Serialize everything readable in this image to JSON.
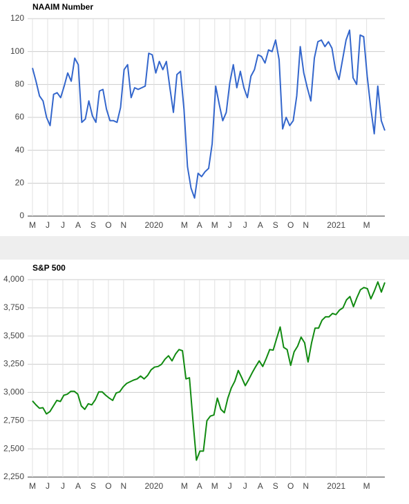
{
  "chart_data": [
    {
      "type": "line",
      "title": "NAAIM Number",
      "grid": true,
      "series": [
        {
          "name": null,
          "color": "#3366cc",
          "values": [
            90,
            82,
            73,
            70,
            60,
            55,
            74,
            75,
            72,
            79,
            87,
            82,
            96,
            92,
            57,
            59,
            70,
            61,
            57,
            76,
            77,
            65,
            58,
            58,
            57,
            66,
            89,
            92,
            72,
            78,
            77,
            78,
            79,
            99,
            98,
            87,
            94,
            89,
            94,
            78,
            63,
            86,
            88,
            65,
            30,
            17,
            11,
            26,
            24,
            27,
            29,
            44,
            79,
            68,
            58,
            63,
            81,
            92,
            78,
            88,
            78,
            72,
            85,
            89,
            98,
            97,
            93,
            101,
            100,
            107,
            95,
            53,
            60,
            55,
            58,
            73,
            103,
            87,
            78,
            70,
            96,
            106,
            107,
            103,
            106,
            102,
            89,
            83,
            95,
            107,
            113,
            84,
            80,
            110,
            109,
            85,
            66,
            50,
            79,
            58,
            52
          ]
        }
      ],
      "ylim": [
        0,
        120
      ],
      "yticks": [
        0,
        20,
        40,
        60,
        80,
        100,
        120
      ],
      "xlim": [
        0,
        23.2
      ],
      "xticks": [
        {
          "value": 0,
          "label": "M"
        },
        {
          "value": 1,
          "label": "J"
        },
        {
          "value": 2,
          "label": "J"
        },
        {
          "value": 3,
          "label": "A"
        },
        {
          "value": 4,
          "label": "S"
        },
        {
          "value": 5,
          "label": "O"
        },
        {
          "value": 6,
          "label": "N"
        },
        {
          "value": 8,
          "label": "2020"
        },
        {
          "value": 10,
          "label": "M"
        },
        {
          "value": 11,
          "label": "A"
        },
        {
          "value": 12,
          "label": "M"
        },
        {
          "value": 13,
          "label": "J"
        },
        {
          "value": 14,
          "label": "J"
        },
        {
          "value": 15,
          "label": "A"
        },
        {
          "value": 16,
          "label": "S"
        },
        {
          "value": 17,
          "label": "O"
        },
        {
          "value": 18,
          "label": "N"
        },
        {
          "value": 20,
          "label": "2021"
        },
        {
          "value": 22,
          "label": "M"
        }
      ]
    },
    {
      "type": "line",
      "title": "S&P 500",
      "grid": true,
      "series": [
        {
          "name": null,
          "color": "#108a10",
          "values": [
            2925,
            2890,
            2860,
            2865,
            2810,
            2830,
            2880,
            2930,
            2920,
            2975,
            2985,
            3010,
            3010,
            2985,
            2880,
            2850,
            2900,
            2890,
            2935,
            3005,
            3005,
            2975,
            2950,
            2930,
            2995,
            3005,
            3050,
            3080,
            3095,
            3110,
            3120,
            3145,
            3120,
            3150,
            3200,
            3225,
            3230,
            3250,
            3295,
            3325,
            3280,
            3340,
            3380,
            3370,
            3120,
            3130,
            2750,
            2400,
            2480,
            2480,
            2750,
            2790,
            2800,
            2950,
            2850,
            2820,
            2950,
            3040,
            3100,
            3195,
            3130,
            3060,
            3115,
            3175,
            3230,
            3280,
            3230,
            3300,
            3380,
            3375,
            3480,
            3580,
            3400,
            3380,
            3240,
            3360,
            3410,
            3490,
            3440,
            3270,
            3440,
            3570,
            3570,
            3640,
            3670,
            3670,
            3700,
            3690,
            3730,
            3750,
            3820,
            3850,
            3760,
            3840,
            3910,
            3930,
            3920,
            3830,
            3900,
            3980,
            3890,
            3975
          ]
        }
      ],
      "ylim": [
        2250,
        4000
      ],
      "yticks": [
        {
          "value": 2250,
          "label": "2,250"
        },
        {
          "value": 2500,
          "label": "2,500"
        },
        {
          "value": 2750,
          "label": "2,750"
        },
        {
          "value": 3000,
          "label": "3,000"
        },
        {
          "value": 3250,
          "label": "3,250"
        },
        {
          "value": 3500,
          "label": "3,500"
        },
        {
          "value": 3750,
          "label": "3,750"
        },
        {
          "value": 4000,
          "label": "4,000"
        }
      ],
      "xlim": [
        0,
        23.2
      ],
      "xticks": [
        {
          "value": 0,
          "label": "M"
        },
        {
          "value": 1,
          "label": "J"
        },
        {
          "value": 2,
          "label": "J"
        },
        {
          "value": 3,
          "label": "A"
        },
        {
          "value": 4,
          "label": "S"
        },
        {
          "value": 5,
          "label": "O"
        },
        {
          "value": 6,
          "label": "N"
        },
        {
          "value": 8,
          "label": "2020"
        },
        {
          "value": 10,
          "label": "M"
        },
        {
          "value": 11,
          "label": "A"
        },
        {
          "value": 12,
          "label": "M"
        },
        {
          "value": 13,
          "label": "J"
        },
        {
          "value": 14,
          "label": "J"
        },
        {
          "value": 15,
          "label": "A"
        },
        {
          "value": 16,
          "label": "S"
        },
        {
          "value": 17,
          "label": "O"
        },
        {
          "value": 18,
          "label": "N"
        },
        {
          "value": 20,
          "label": "2021"
        },
        {
          "value": 22,
          "label": "M"
        }
      ]
    }
  ]
}
